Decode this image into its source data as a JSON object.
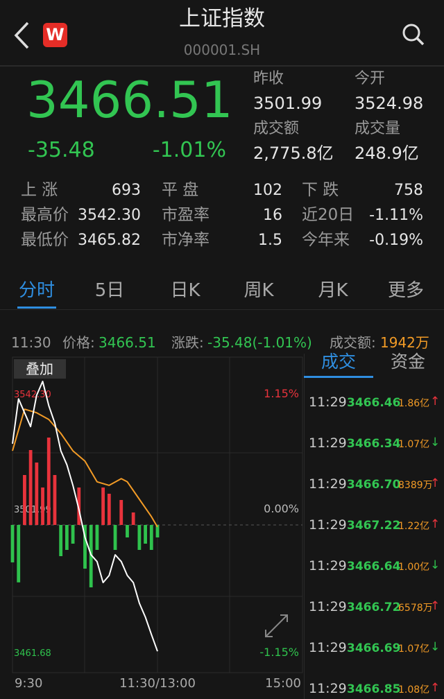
{
  "header": {
    "title": "上证指数",
    "code": "000001.SH",
    "badge": "W"
  },
  "quote": {
    "price": "3466.51",
    "change": "-35.48",
    "change_pct": "-1.01%",
    "fields": [
      {
        "label": "昨收",
        "value": "3501.99"
      },
      {
        "label": "今开",
        "value": "3524.98"
      },
      {
        "label": "成交额",
        "value": "2,775.8亿"
      },
      {
        "label": "成交量",
        "value": "248.9亿"
      }
    ]
  },
  "stats": [
    [
      {
        "label": "上 涨",
        "value": "693"
      },
      {
        "label": "平 盘",
        "value": "102"
      },
      {
        "label": "下 跌",
        "value": "758"
      }
    ],
    [
      {
        "label": "最高价",
        "value": "3542.30"
      },
      {
        "label": "市盈率",
        "value": "16"
      },
      {
        "label": "近20日",
        "value": "-1.11%"
      }
    ],
    [
      {
        "label": "最低价",
        "value": "3465.82"
      },
      {
        "label": "市净率",
        "value": "1.5"
      },
      {
        "label": "今年来",
        "value": "-0.19%"
      }
    ]
  ],
  "tabs": [
    "分时",
    "5日",
    "日K",
    "周K",
    "月K",
    "更多"
  ],
  "active_tab": 0,
  "info": {
    "time": "11:30",
    "price_label": "价格:",
    "price": "3466.51",
    "change_label": "涨跌:",
    "change": "-35.48(-1.01%)",
    "amount_label": "成交额:",
    "amount": "1942万"
  },
  "chart_data": {
    "type": "line",
    "overlay_button": "叠加",
    "xlim": [
      0,
      240
    ],
    "xticks": [
      {
        "value": 0,
        "label": "9:30"
      },
      {
        "value": 120,
        "label": "11:30/13:00"
      },
      {
        "value": 240,
        "label": "15:00"
      }
    ],
    "ylim": [
      3461.68,
      3542.3
    ],
    "yticks": [
      {
        "value": 3542.3,
        "label": "3542.30"
      },
      {
        "value": 3501.99,
        "label": "3501.99"
      },
      {
        "value": 3461.68,
        "label": "3461.68"
      }
    ],
    "y2lim": [
      -1.15,
      1.15
    ],
    "y2ticks": [
      {
        "value": 1.15,
        "label": "1.15%"
      },
      {
        "value": 0,
        "label": "0.00%"
      },
      {
        "value": -1.15,
        "label": "-1.15%"
      }
    ],
    "price": {
      "color": "#ffffff",
      "x": [
        0,
        5,
        10,
        15,
        20,
        25,
        30,
        35,
        40,
        45,
        50,
        55,
        60,
        65,
        70,
        75,
        80,
        85,
        90,
        95,
        100,
        105,
        110,
        115,
        120
      ],
      "values": [
        3524.8,
        3537.4,
        3533.5,
        3529.6,
        3538.4,
        3542.3,
        3535.5,
        3530.6,
        3522.8,
        3518.9,
        3513.1,
        3506.3,
        3498.5,
        3493.6,
        3491.7,
        3485.8,
        3487.8,
        3493.6,
        3491.7,
        3487.8,
        3485.8,
        3480.0,
        3476.1,
        3471.2,
        3466.5
      ]
    },
    "average": {
      "color": "#f29b26",
      "x": [
        0,
        10,
        20,
        30,
        40,
        50,
        60,
        70,
        80,
        90,
        95,
        105,
        115,
        120
      ],
      "values": [
        3522.8,
        3534.5,
        3533.5,
        3531.6,
        3527.7,
        3522.8,
        3519.9,
        3514.1,
        3513.1,
        3515.0,
        3514.1,
        3509.2,
        3504.3,
        3501.4
      ]
    },
    "bars": {
      "axis": "y2",
      "up_color": "#e8333c",
      "down_color": "#2fc24d",
      "x": [
        0,
        5,
        10,
        15,
        20,
        25,
        30,
        35,
        40,
        45,
        50,
        55,
        60,
        65,
        70,
        75,
        80,
        85,
        90,
        95,
        100,
        105,
        110,
        115,
        120
      ],
      "values": [
        -0.3,
        -0.46,
        0.4,
        0.6,
        0.5,
        0.3,
        0.7,
        0.4,
        -0.25,
        -0.2,
        -0.15,
        0.3,
        -0.35,
        -0.5,
        -0.2,
        0.3,
        0.25,
        -0.2,
        0.2,
        -0.1,
        0.1,
        -0.2,
        -0.15,
        -0.2,
        -0.1
      ]
    }
  },
  "trades": {
    "tabs": [
      "成交",
      "资金"
    ],
    "active_tab": 0,
    "rows": [
      {
        "time": "11:29",
        "price": "3466.46",
        "volume": "1.86亿",
        "arrow": "↑"
      },
      {
        "time": "11:29",
        "price": "3466.34",
        "volume": "1.07亿",
        "arrow": "↓"
      },
      {
        "time": "11:29",
        "price": "3466.70",
        "volume": "8389万",
        "arrow": "↑"
      },
      {
        "time": "11:29",
        "price": "3467.22",
        "volume": "1.22亿",
        "arrow": "↑"
      },
      {
        "time": "11:29",
        "price": "3466.64",
        "volume": "1.00亿",
        "arrow": "↓"
      },
      {
        "time": "11:29",
        "price": "3466.72",
        "volume": "6578万",
        "arrow": "↑"
      },
      {
        "time": "11:29",
        "price": "3466.69",
        "volume": "1.07亿",
        "arrow": "↓"
      },
      {
        "time": "11:29",
        "price": "3466.85",
        "volume": "1.08亿",
        "arrow": "↑"
      }
    ]
  }
}
